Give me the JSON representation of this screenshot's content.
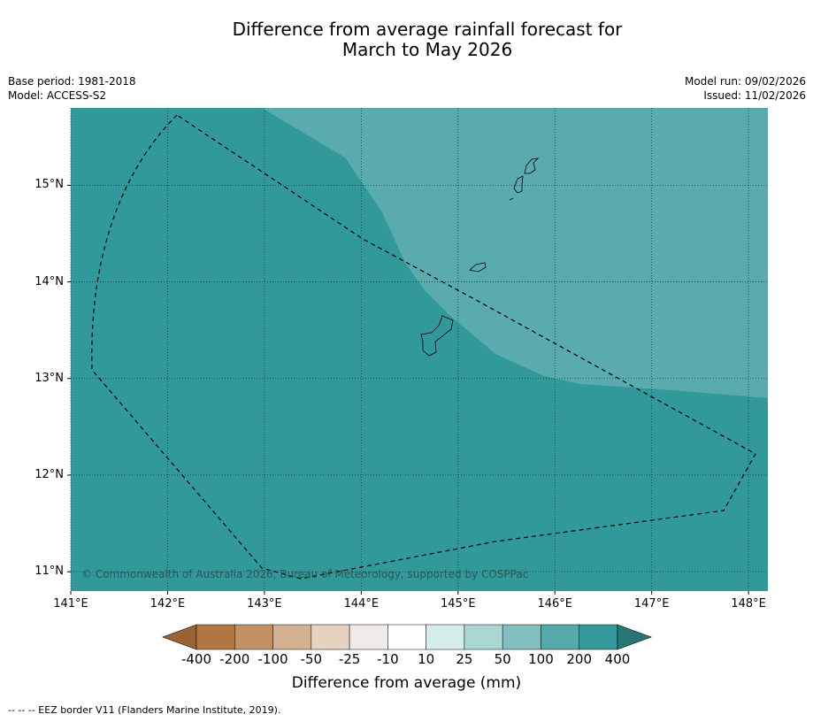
{
  "title": {
    "line1": "Difference from average rainfall forecast for",
    "line2": "March to May 2026"
  },
  "meta": {
    "base_period": "Base period: 1981-2018",
    "model": "Model: ACCESS-S2",
    "model_run": "Model run: 09/02/2026",
    "issued": "Issued: 11/02/2026"
  },
  "map": {
    "lat_range": [
      10.8,
      15.8
    ],
    "lon_range": [
      141.0,
      148.2
    ],
    "lat_labels": [
      "15°N",
      "14°N",
      "13°N",
      "12°N",
      "11°N"
    ],
    "lat_values": [
      15,
      14,
      13,
      12,
      11
    ],
    "lon_labels": [
      "141°E",
      "142°E",
      "143°E",
      "144°E",
      "145°E",
      "146°E",
      "147°E",
      "148°E"
    ],
    "lon_values": [
      141,
      142,
      143,
      144,
      145,
      146,
      147,
      148
    ],
    "copyright": "© Commonwealth of Australia 2026, Bureau of Meteorology, supported by COSPPac",
    "colors": {
      "region_high": "#32999a",
      "region_mid": "#5aabad",
      "gridline": "#1b3b3b",
      "border": "#000000"
    }
  },
  "colorbar": {
    "ticks": [
      "-400",
      "-200",
      "-100",
      "-50",
      "-25",
      "-10",
      "10",
      "25",
      "50",
      "100",
      "200",
      "400"
    ],
    "colors": [
      "#9b6234",
      "#b07841",
      "#c29166",
      "#d4b291",
      "#e7d1bf",
      "#efebe8",
      "#ffffff",
      "#d5eeec",
      "#abd6d4",
      "#83bfbf",
      "#56a9aa",
      "#33999a",
      "#277675"
    ],
    "label": "Difference from average (mm)"
  },
  "legend_note": "--  --  -- EEZ border V11 (Flanders Marine Institute, 2019)."
}
